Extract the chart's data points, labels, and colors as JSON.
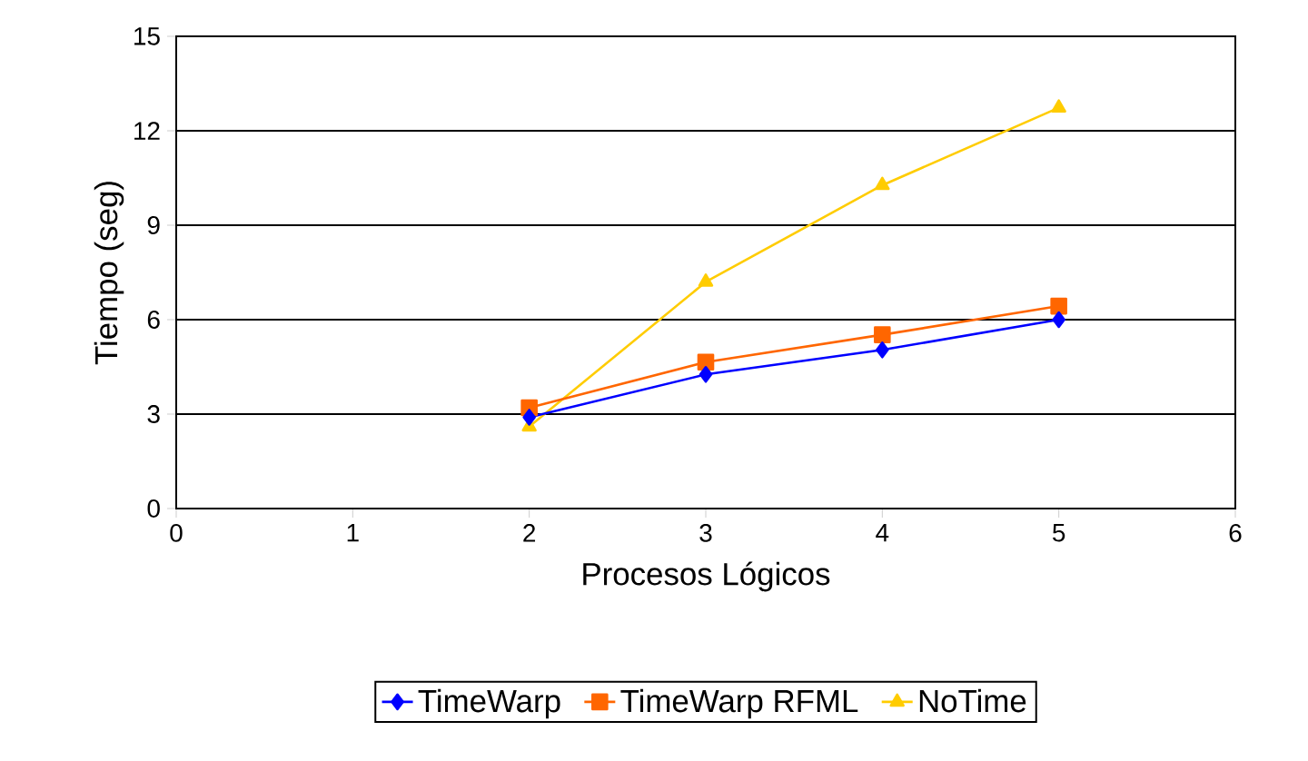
{
  "chart_data": {
    "type": "line",
    "xlabel": "Procesos Lógicos",
    "ylabel": "Tiempo (seg)",
    "x": [
      2,
      3,
      4,
      5
    ],
    "series": [
      {
        "name": "TimeWarp",
        "color": "#0000ff",
        "marker": "diamond",
        "values": [
          2.9,
          4.26,
          5.04,
          6.0
        ]
      },
      {
        "name": "TimeWarp RFML",
        "color": "#ff6600",
        "marker": "square",
        "values": [
          3.2,
          4.65,
          5.52,
          6.43
        ]
      },
      {
        "name": "NoTime",
        "color": "#ffcc00",
        "marker": "triangle",
        "values": [
          2.6,
          7.2,
          10.27,
          12.73
        ]
      }
    ],
    "xlim": [
      0,
      6
    ],
    "xticks": [
      0,
      1,
      2,
      3,
      4,
      5,
      6
    ],
    "ylim": [
      0,
      15
    ],
    "yticks": [
      0,
      3,
      6,
      9,
      12,
      15
    ],
    "grid": "y",
    "legend": "bottom",
    "line_style": "solid"
  }
}
